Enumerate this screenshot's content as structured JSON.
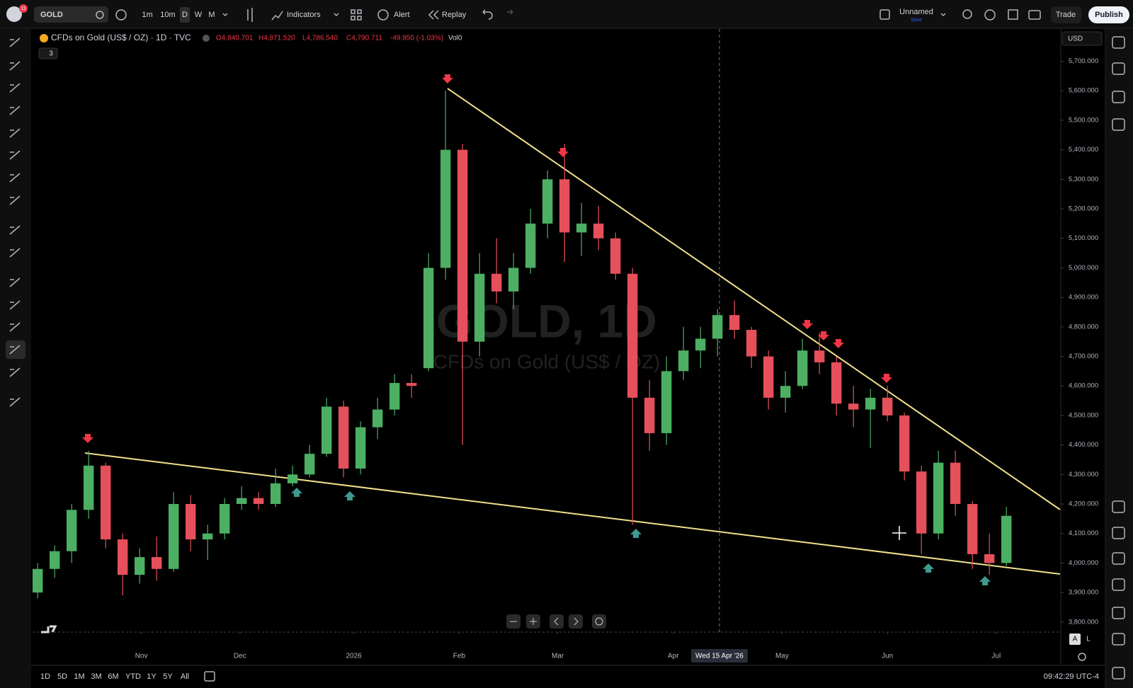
{
  "toolbar": {
    "notifications": "11",
    "symbol": "GOLD",
    "intervals": [
      "1m",
      "10m",
      "D",
      "W",
      "M"
    ],
    "indicators": "Indicators",
    "alert": "Alert",
    "replay": "Replay",
    "layout_name": "Unnamed",
    "save": "Save",
    "trade": "Trade",
    "publish": "Publish"
  },
  "legend": {
    "title": "CFDs on Gold (US$ / OZ) · 1D · TVC",
    "open": "O4,840.701",
    "high": "H4,871.520",
    "low": "L4,786.540",
    "close": "C4,790.711",
    "change": "-49.950 (-1.03%)",
    "volume": "Vol0",
    "indicators_count": "3"
  },
  "watermark": {
    "symbol": "GOLD, 1D",
    "description": "CFDs on Gold (US$ / OZ)"
  },
  "currency": "USD",
  "crosshair_date": "Wed 15 Apr '26",
  "scale_buttons": [
    "A",
    "L"
  ],
  "ranges": [
    "1D",
    "5D",
    "1M",
    "3M",
    "6M",
    "YTD",
    "1Y",
    "5Y",
    "All"
  ],
  "clock": "09:42:29 UTC-4",
  "chart_data": {
    "type": "candlestick",
    "up_color": "#4caf63",
    "down_color": "#e5505b",
    "open": [
      3900,
      3980,
      4040,
      4180,
      4330,
      4080,
      3960,
      4020,
      3980,
      4200,
      4080,
      4100,
      4200,
      4220,
      4200,
      4270,
      4300,
      4370,
      4530,
      4320,
      4460,
      4520,
      4610,
      4660,
      5000,
      5400,
      4750,
      4980,
      4920,
      5000,
      5150,
      5300,
      5120,
      5150,
      5100,
      4980,
      4560,
      4440,
      4650,
      4720,
      4760,
      4840,
      4790,
      4700,
      4560,
      4600,
      4720,
      4680,
      4540,
      4520,
      4560,
      4500,
      4310,
      4100,
      4340,
      4200,
      4030,
      4000
    ],
    "high": [
      4000,
      4060,
      4200,
      4380,
      4340,
      4100,
      4050,
      4090,
      4240,
      4230,
      4130,
      4220,
      4260,
      4240,
      4320,
      4330,
      4400,
      4560,
      4550,
      4480,
      4560,
      4640,
      4640,
      5050,
      5600,
      5420,
      5050,
      5100,
      5050,
      5200,
      5330,
      5420,
      5220,
      5210,
      5120,
      5000,
      4620,
      4700,
      4800,
      4800,
      4860,
      4890,
      4800,
      4720,
      4650,
      4760,
      4780,
      4700,
      4600,
      4590,
      4600,
      4510,
      4330,
      4380,
      4380,
      4210,
      4100,
      4190
    ],
    "low": [
      3880,
      3950,
      4000,
      4150,
      4050,
      3890,
      3930,
      3940,
      3970,
      4040,
      4010,
      4080,
      4180,
      4180,
      4190,
      4260,
      4290,
      4360,
      4290,
      4300,
      4420,
      4500,
      4560,
      4650,
      4960,
      4400,
      4700,
      4880,
      4860,
      4980,
      5100,
      5020,
      5040,
      5060,
      4960,
      4130,
      4380,
      4400,
      4620,
      4660,
      4700,
      4760,
      4660,
      4520,
      4510,
      4590,
      4640,
      4500,
      4460,
      4390,
      4480,
      4280,
      4030,
      4080,
      4160,
      3980,
      3960,
      3990
    ],
    "close": [
      3980,
      4040,
      4180,
      4330,
      4080,
      3960,
      4020,
      3980,
      4200,
      4080,
      4100,
      4200,
      4220,
      4200,
      4270,
      4300,
      4370,
      4530,
      4320,
      4460,
      4520,
      4610,
      4600,
      5000,
      5400,
      4750,
      4980,
      4920,
      5000,
      5150,
      5300,
      5120,
      5150,
      5100,
      4980,
      4560,
      4440,
      4650,
      4720,
      4760,
      4840,
      4790,
      4700,
      4560,
      4600,
      4720,
      4680,
      4540,
      4520,
      4560,
      4500,
      4310,
      4100,
      4340,
      4200,
      4030,
      4000,
      4160
    ],
    "xlim": [
      -0.3,
      60.2
    ],
    "xticks": [
      {
        "value": 6.1,
        "label": "Nov"
      },
      {
        "value": 11.9,
        "label": "Dec"
      },
      {
        "value": 18.6,
        "label": "2026"
      },
      {
        "value": 24.8,
        "label": "Feb"
      },
      {
        "value": 30.6,
        "label": "Mar"
      },
      {
        "value": 37.4,
        "label": "Apr"
      },
      {
        "value": 43.8,
        "label": "May"
      },
      {
        "value": 50,
        "label": "Jun"
      },
      {
        "value": 56.4,
        "label": "Jul"
      }
    ],
    "ylim": [
      3766,
      5802
    ],
    "yticks": [
      {
        "value": 3800,
        "label": "3,800.000"
      },
      {
        "value": 3900,
        "label": "3,900.000"
      },
      {
        "value": 4000,
        "label": "4,000.000"
      },
      {
        "value": 4100,
        "label": "4,100.000"
      },
      {
        "value": 4200,
        "label": "4,200.000"
      },
      {
        "value": 4300,
        "label": "4,300.000"
      },
      {
        "value": 4400,
        "label": "4,400.000"
      },
      {
        "value": 4500,
        "label": "4,500.000"
      },
      {
        "value": 4600,
        "label": "4,600.000"
      },
      {
        "value": 4700,
        "label": "4,700.000"
      },
      {
        "value": 4800,
        "label": "4,800.000"
      },
      {
        "value": 4900,
        "label": "4,900.000"
      },
      {
        "value": 5000,
        "label": "5,000.000"
      },
      {
        "value": 5100,
        "label": "5,100.000"
      },
      {
        "value": 5200,
        "label": "5,200.000"
      },
      {
        "value": 5300,
        "label": "5,300.000"
      },
      {
        "value": 5400,
        "label": "5,400.000"
      },
      {
        "value": 5500,
        "label": "5,500.000"
      },
      {
        "value": 5600,
        "label": "5,600.000"
      },
      {
        "value": 5700,
        "label": "5,700.000"
      }
    ]
  }
}
